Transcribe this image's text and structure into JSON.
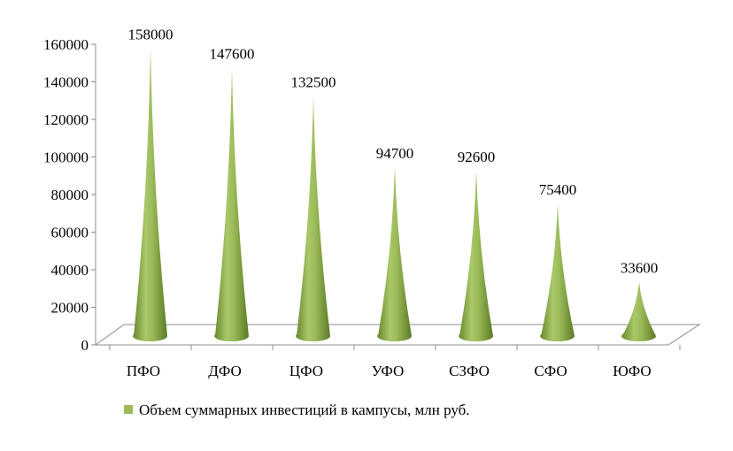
{
  "chart_data": {
    "type": "bar",
    "shape": "cone-3d",
    "categories": [
      "ПФО",
      "ДФО",
      "ЦФО",
      "УФО",
      "СЗФО",
      "СФО",
      "ЮФО"
    ],
    "series": [
      {
        "name": "Объем суммарных инвестиций в кампусы, млн руб.",
        "values": [
          158000,
          147600,
          132500,
          94700,
          92600,
          75400,
          33600
        ],
        "color": "#9bbb59"
      }
    ],
    "data_labels": [
      "158000",
      "147600",
      "132500",
      "94700",
      "92600",
      "75400",
      "33600"
    ],
    "y_ticks": [
      "0",
      "20000",
      "40000",
      "60000",
      "80000",
      "100000",
      "120000",
      "140000",
      "160000"
    ],
    "ylim": [
      0,
      160000
    ],
    "grid": false,
    "legend": {
      "position": "bottom",
      "label": "Объем суммарных инвестиций в кампусы, млн руб.",
      "marker_color": "#9bbb59"
    }
  }
}
